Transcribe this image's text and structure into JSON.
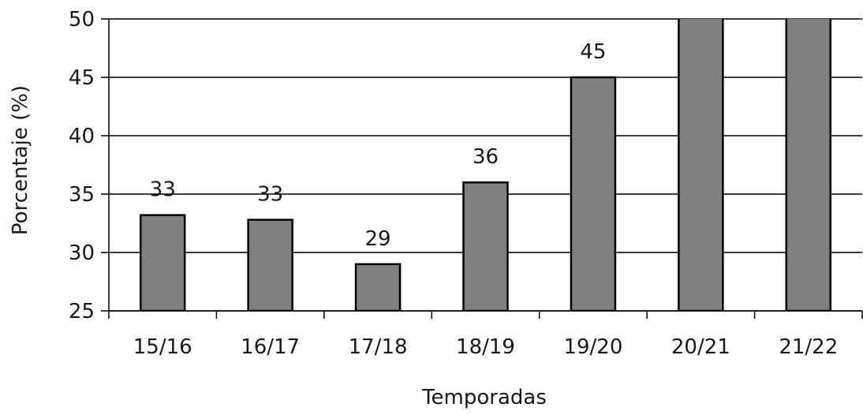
{
  "chart_data": {
    "type": "bar",
    "title": "",
    "xlabel": "Temporadas",
    "ylabel": "Porcentaje (%)",
    "ylim": [
      25,
      50
    ],
    "yticks": [
      25,
      30,
      35,
      40,
      45,
      50
    ],
    "categories": [
      "15/16",
      "16/17",
      "17/18",
      "18/19",
      "19/20",
      "20/21",
      "21/22"
    ],
    "values": [
      33.2,
      32.8,
      29,
      36,
      45,
      52,
      52
    ],
    "data_labels": [
      "33",
      "33",
      "29",
      "36",
      "45",
      "",
      ""
    ],
    "grid": "horizontal",
    "legend": "none",
    "bar_color": "#808080",
    "bar_edge_color": "#000000"
  }
}
